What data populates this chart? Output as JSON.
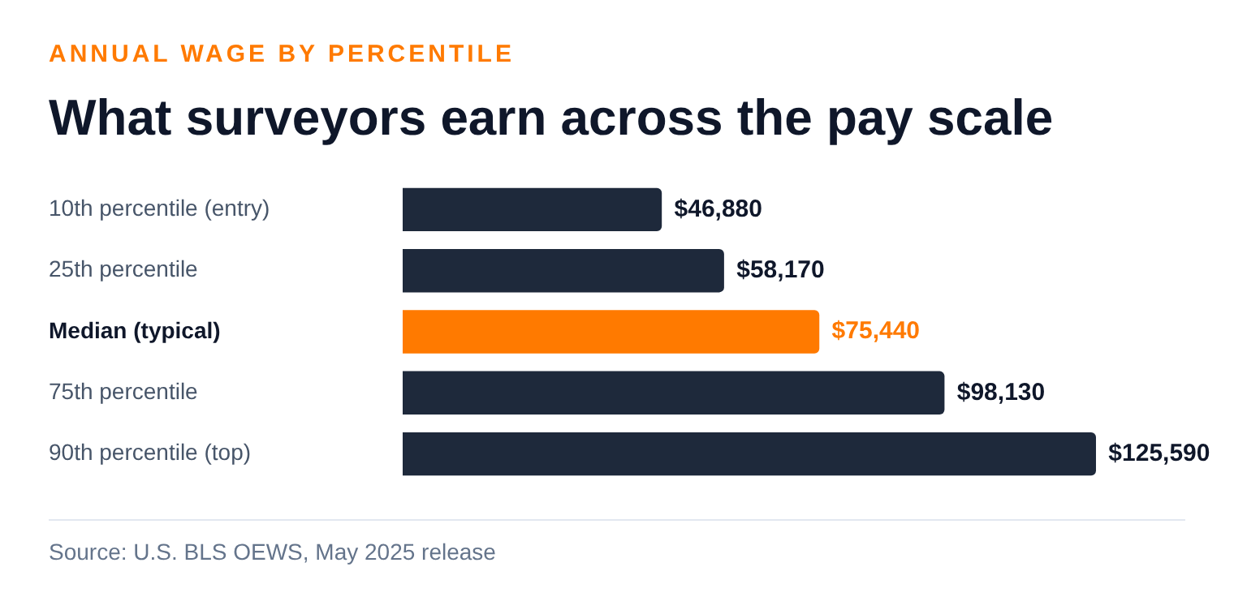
{
  "chart_data": {
    "type": "bar",
    "orientation": "horizontal",
    "subtitle": "ANNUAL WAGE BY PERCENTILE",
    "title": "What surveyors earn across the pay scale",
    "categories": [
      "10th percentile (entry)",
      "25th percentile",
      "Median (typical)",
      "75th percentile",
      "90th percentile (top)"
    ],
    "values": [
      46880,
      58170,
      75440,
      98130,
      125590
    ],
    "value_labels": [
      "$46,880",
      "$58,170",
      "$75,440",
      "$98,130",
      "$125,590"
    ],
    "colors": [
      "#1e293b",
      "#1e293b",
      "#ff7a00",
      "#1e293b",
      "#1e293b"
    ],
    "annotations": [
      "Source: U.S. BLS OEWS, May 2025 release"
    ],
    "legend": false
  }
}
